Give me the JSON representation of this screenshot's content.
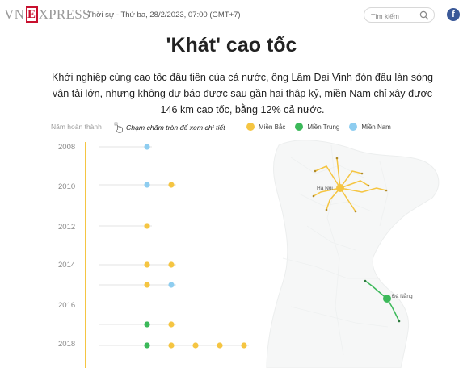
{
  "header": {
    "logo": {
      "left": "VN",
      "box": "E",
      "right": "XPRESS"
    },
    "dateline": "Thời sự - Thứ ba, 28/2/2023, 07:00 (GMT+7)",
    "search_placeholder": "Tìm kiếm",
    "facebook_label": "f"
  },
  "article": {
    "title": "'Khát' cao tốc",
    "lede": "Khởi nghiệp cùng cao tốc đầu tiên của cả nước, ông Lâm Đại Vinh đón đầu làn sóng vận tải lớn, nhưng không dự báo được sau gần hai thập kỷ, miền Nam chỉ xây được 146 km cao tốc, bằng 12% cả nước."
  },
  "chart_controls": {
    "year_caption": "Năm hoàn thành",
    "hint": "Chạm chấm tròn để xem chi tiết"
  },
  "legend": [
    {
      "label": "Miền Bắc",
      "color": "#f5c542"
    },
    {
      "label": "Miền Trung",
      "color": "#3cb95a"
    },
    {
      "label": "Miền Nam",
      "color": "#8ecdf0"
    }
  ],
  "timeline": {
    "years": [
      "2008",
      "2010",
      "2012",
      "2014",
      "2016",
      "2018"
    ],
    "rows": [
      {
        "dots": [
          "nam"
        ]
      },
      {
        "dots": [
          "nam",
          "bac"
        ]
      },
      {
        "dots": [
          "bac"
        ]
      },
      {
        "dots": [
          "bac",
          "bac"
        ]
      },
      {
        "dots": [
          "bac",
          "nam"
        ]
      },
      {
        "dots": [
          "trung",
          "bac"
        ]
      },
      {
        "dots": [
          "trung",
          "bac",
          "bac",
          "bac",
          "bac"
        ]
      }
    ]
  },
  "map": {
    "labels": [
      "Hà Nội",
      "Đà Nẵng"
    ]
  },
  "colors": {
    "bac": "#f5c542",
    "trung": "#3cb95a",
    "nam": "#8ecdf0",
    "axis": "#f5c542"
  }
}
